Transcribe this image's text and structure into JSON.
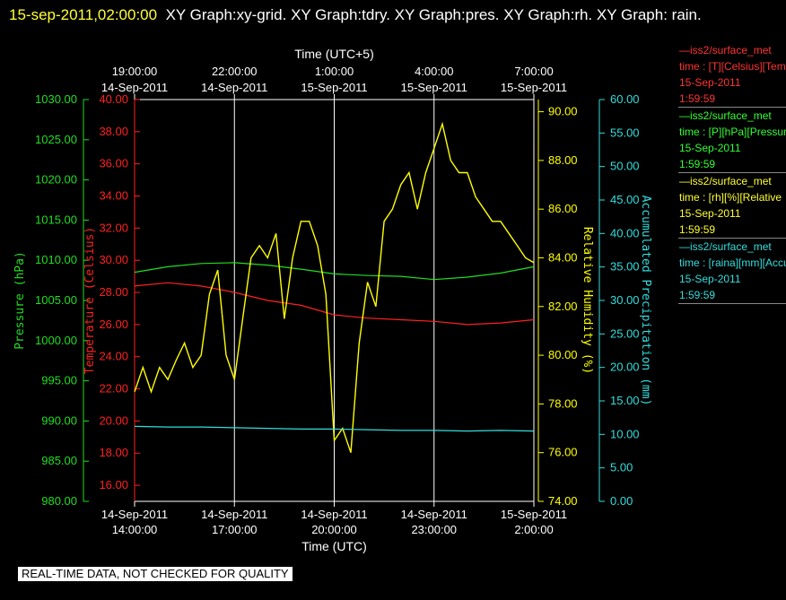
{
  "header": {
    "datetime": "15-sep-2011,02:00:00",
    "title": "XY Graph:xy-grid.  XY Graph:tdry.  XY Graph:pres.  XY Graph:rh.  XY Graph: rain."
  },
  "quality_notice": "REAL-TIME DATA, NOT CHECKED FOR QUALITY",
  "colors": {
    "temperature": "#ff2020",
    "pressure": "#22dd22",
    "humidity": "#ffff00",
    "precip": "#33dddd",
    "grid": "#ffffff",
    "text": "#ffffff"
  },
  "legend": [
    {
      "name": "legend-temperature",
      "color": "#ff3333",
      "line1": "—iss2/surface_met",
      "line2": "time : [T][Celsius][Temp",
      "line3": "15-Sep-2011",
      "line4": "1:59:59"
    },
    {
      "name": "legend-pressure",
      "color": "#33ff33",
      "line1": "—iss2/surface_met",
      "line2": "time : [P][hPa][Pressure",
      "line3": "15-Sep-2011",
      "line4": "1:59:59"
    },
    {
      "name": "legend-humidity",
      "color": "#ffff33",
      "line1": "—iss2/surface_met",
      "line2": "time : [rh][%][Relative",
      "line3": "15-Sep-2011",
      "line4": "1:59:59"
    },
    {
      "name": "legend-precip",
      "color": "#33dddd",
      "line1": "—iss2/surface_met",
      "line2": "time : [raina][mm][Accum",
      "line3": "15-Sep-2011",
      "line4": "1:59:59"
    }
  ],
  "chart_data": {
    "type": "line",
    "xlabel": "Time (UTC)",
    "x2label": "Time (UTC+5)",
    "xlim_hours": [
      0,
      12
    ],
    "x_ticks": [
      {
        "hour": 0,
        "date": "14-Sep-2011",
        "time": "14:00:00"
      },
      {
        "hour": 3,
        "date": "14-Sep-2011",
        "time": "17:00:00"
      },
      {
        "hour": 6,
        "date": "14-Sep-2011",
        "time": "20:00:00"
      },
      {
        "hour": 9,
        "date": "14-Sep-2011",
        "time": "23:00:00"
      },
      {
        "hour": 12,
        "date": "15-Sep-2011",
        "time": "2:00:00"
      }
    ],
    "x2_ticks": [
      {
        "hour": 0,
        "time": "19:00:00",
        "date": "14-Sep-2011"
      },
      {
        "hour": 3,
        "time": "22:00:00",
        "date": "14-Sep-2011"
      },
      {
        "hour": 6,
        "time": "1:00:00",
        "date": "15-Sep-2011"
      },
      {
        "hour": 9,
        "time": "4:00:00",
        "date": "15-Sep-2011"
      },
      {
        "hour": 12,
        "time": "7:00:00",
        "date": "15-Sep-2011"
      }
    ],
    "axes": {
      "pressure": {
        "label": "Pressure (hPa)",
        "ylim": [
          980,
          1030
        ],
        "ticks": [
          "980.00",
          "985.00",
          "990.00",
          "995.00",
          "1000.00",
          "1005.00",
          "1010.00",
          "1015.00",
          "1020.00",
          "1025.00",
          "1030.00"
        ]
      },
      "temperature": {
        "label": "Temperature (Celsius)",
        "ylim": [
          15,
          40
        ],
        "ticks": [
          "16.00",
          "18.00",
          "20.00",
          "22.00",
          "24.00",
          "26.00",
          "28.00",
          "30.00",
          "32.00",
          "34.00",
          "36.00",
          "38.00",
          "40.00"
        ]
      },
      "humidity": {
        "label": "Relative Humidity (%)",
        "ylim": [
          74,
          90.5
        ],
        "ticks": [
          "74.00",
          "76.00",
          "78.00",
          "80.00",
          "82.00",
          "84.00",
          "86.00",
          "88.00",
          "90.00"
        ]
      },
      "precip": {
        "label": "Accumulated Precipitation (mm)",
        "ylim": [
          0,
          60
        ],
        "ticks": [
          "0.00",
          "5.00",
          "10.00",
          "15.00",
          "20.00",
          "25.00",
          "30.00",
          "35.00",
          "40.00",
          "45.00",
          "50.00",
          "55.00",
          "60.00"
        ]
      }
    },
    "series": [
      {
        "name": "iss2/surface_met T",
        "axis": "temperature",
        "x": [
          0,
          1,
          2,
          3,
          4,
          5,
          6,
          7,
          8,
          9,
          10,
          11,
          12
        ],
        "y": [
          28.4,
          28.6,
          28.4,
          28.0,
          27.5,
          27.2,
          26.6,
          26.4,
          26.3,
          26.2,
          26.0,
          26.1,
          26.3
        ]
      },
      {
        "name": "iss2/surface_met P",
        "axis": "pressure",
        "x": [
          0,
          1,
          2,
          3,
          4,
          5,
          6,
          7,
          8,
          9,
          10,
          11,
          12
        ],
        "y": [
          1008.5,
          1009.2,
          1009.6,
          1009.7,
          1009.4,
          1008.9,
          1008.3,
          1008.1,
          1008.0,
          1007.6,
          1007.9,
          1008.4,
          1009.2
        ]
      },
      {
        "name": "iss2/surface_met rh",
        "axis": "humidity",
        "x": [
          0,
          0.25,
          0.5,
          0.75,
          1,
          1.25,
          1.5,
          1.75,
          2,
          2.25,
          2.5,
          2.75,
          3,
          3.25,
          3.5,
          3.75,
          4,
          4.25,
          4.5,
          4.75,
          5,
          5.25,
          5.5,
          5.75,
          6,
          6.25,
          6.5,
          6.75,
          7,
          7.25,
          7.5,
          7.75,
          8,
          8.25,
          8.5,
          8.75,
          9,
          9.25,
          9.5,
          9.75,
          10,
          10.25,
          10.5,
          10.75,
          11,
          11.25,
          11.5,
          11.75,
          12
        ],
        "y": [
          78.5,
          79.5,
          78.5,
          79.5,
          79.0,
          79.8,
          80.5,
          79.5,
          80.0,
          82.5,
          83.5,
          80.0,
          79.0,
          81.5,
          84.0,
          84.5,
          84.0,
          85.0,
          81.5,
          84.0,
          85.5,
          85.5,
          84.5,
          82.5,
          76.5,
          77.0,
          76.0,
          80.5,
          83.0,
          82.0,
          85.5,
          86.0,
          87.0,
          87.5,
          86.0,
          87.5,
          88.5,
          89.5,
          88.0,
          87.5,
          87.5,
          86.5,
          86.0,
          85.5,
          85.5,
          85.0,
          84.5,
          84.0,
          83.8
        ]
      },
      {
        "name": "iss2/surface_met raina",
        "axis": "precip",
        "x": [
          0,
          1,
          2,
          3,
          4,
          5,
          6,
          7,
          8,
          9,
          10,
          11,
          12
        ],
        "y": [
          11.2,
          11.1,
          11.1,
          11.0,
          10.9,
          10.8,
          10.8,
          10.7,
          10.6,
          10.6,
          10.5,
          10.6,
          10.5
        ]
      }
    ]
  }
}
